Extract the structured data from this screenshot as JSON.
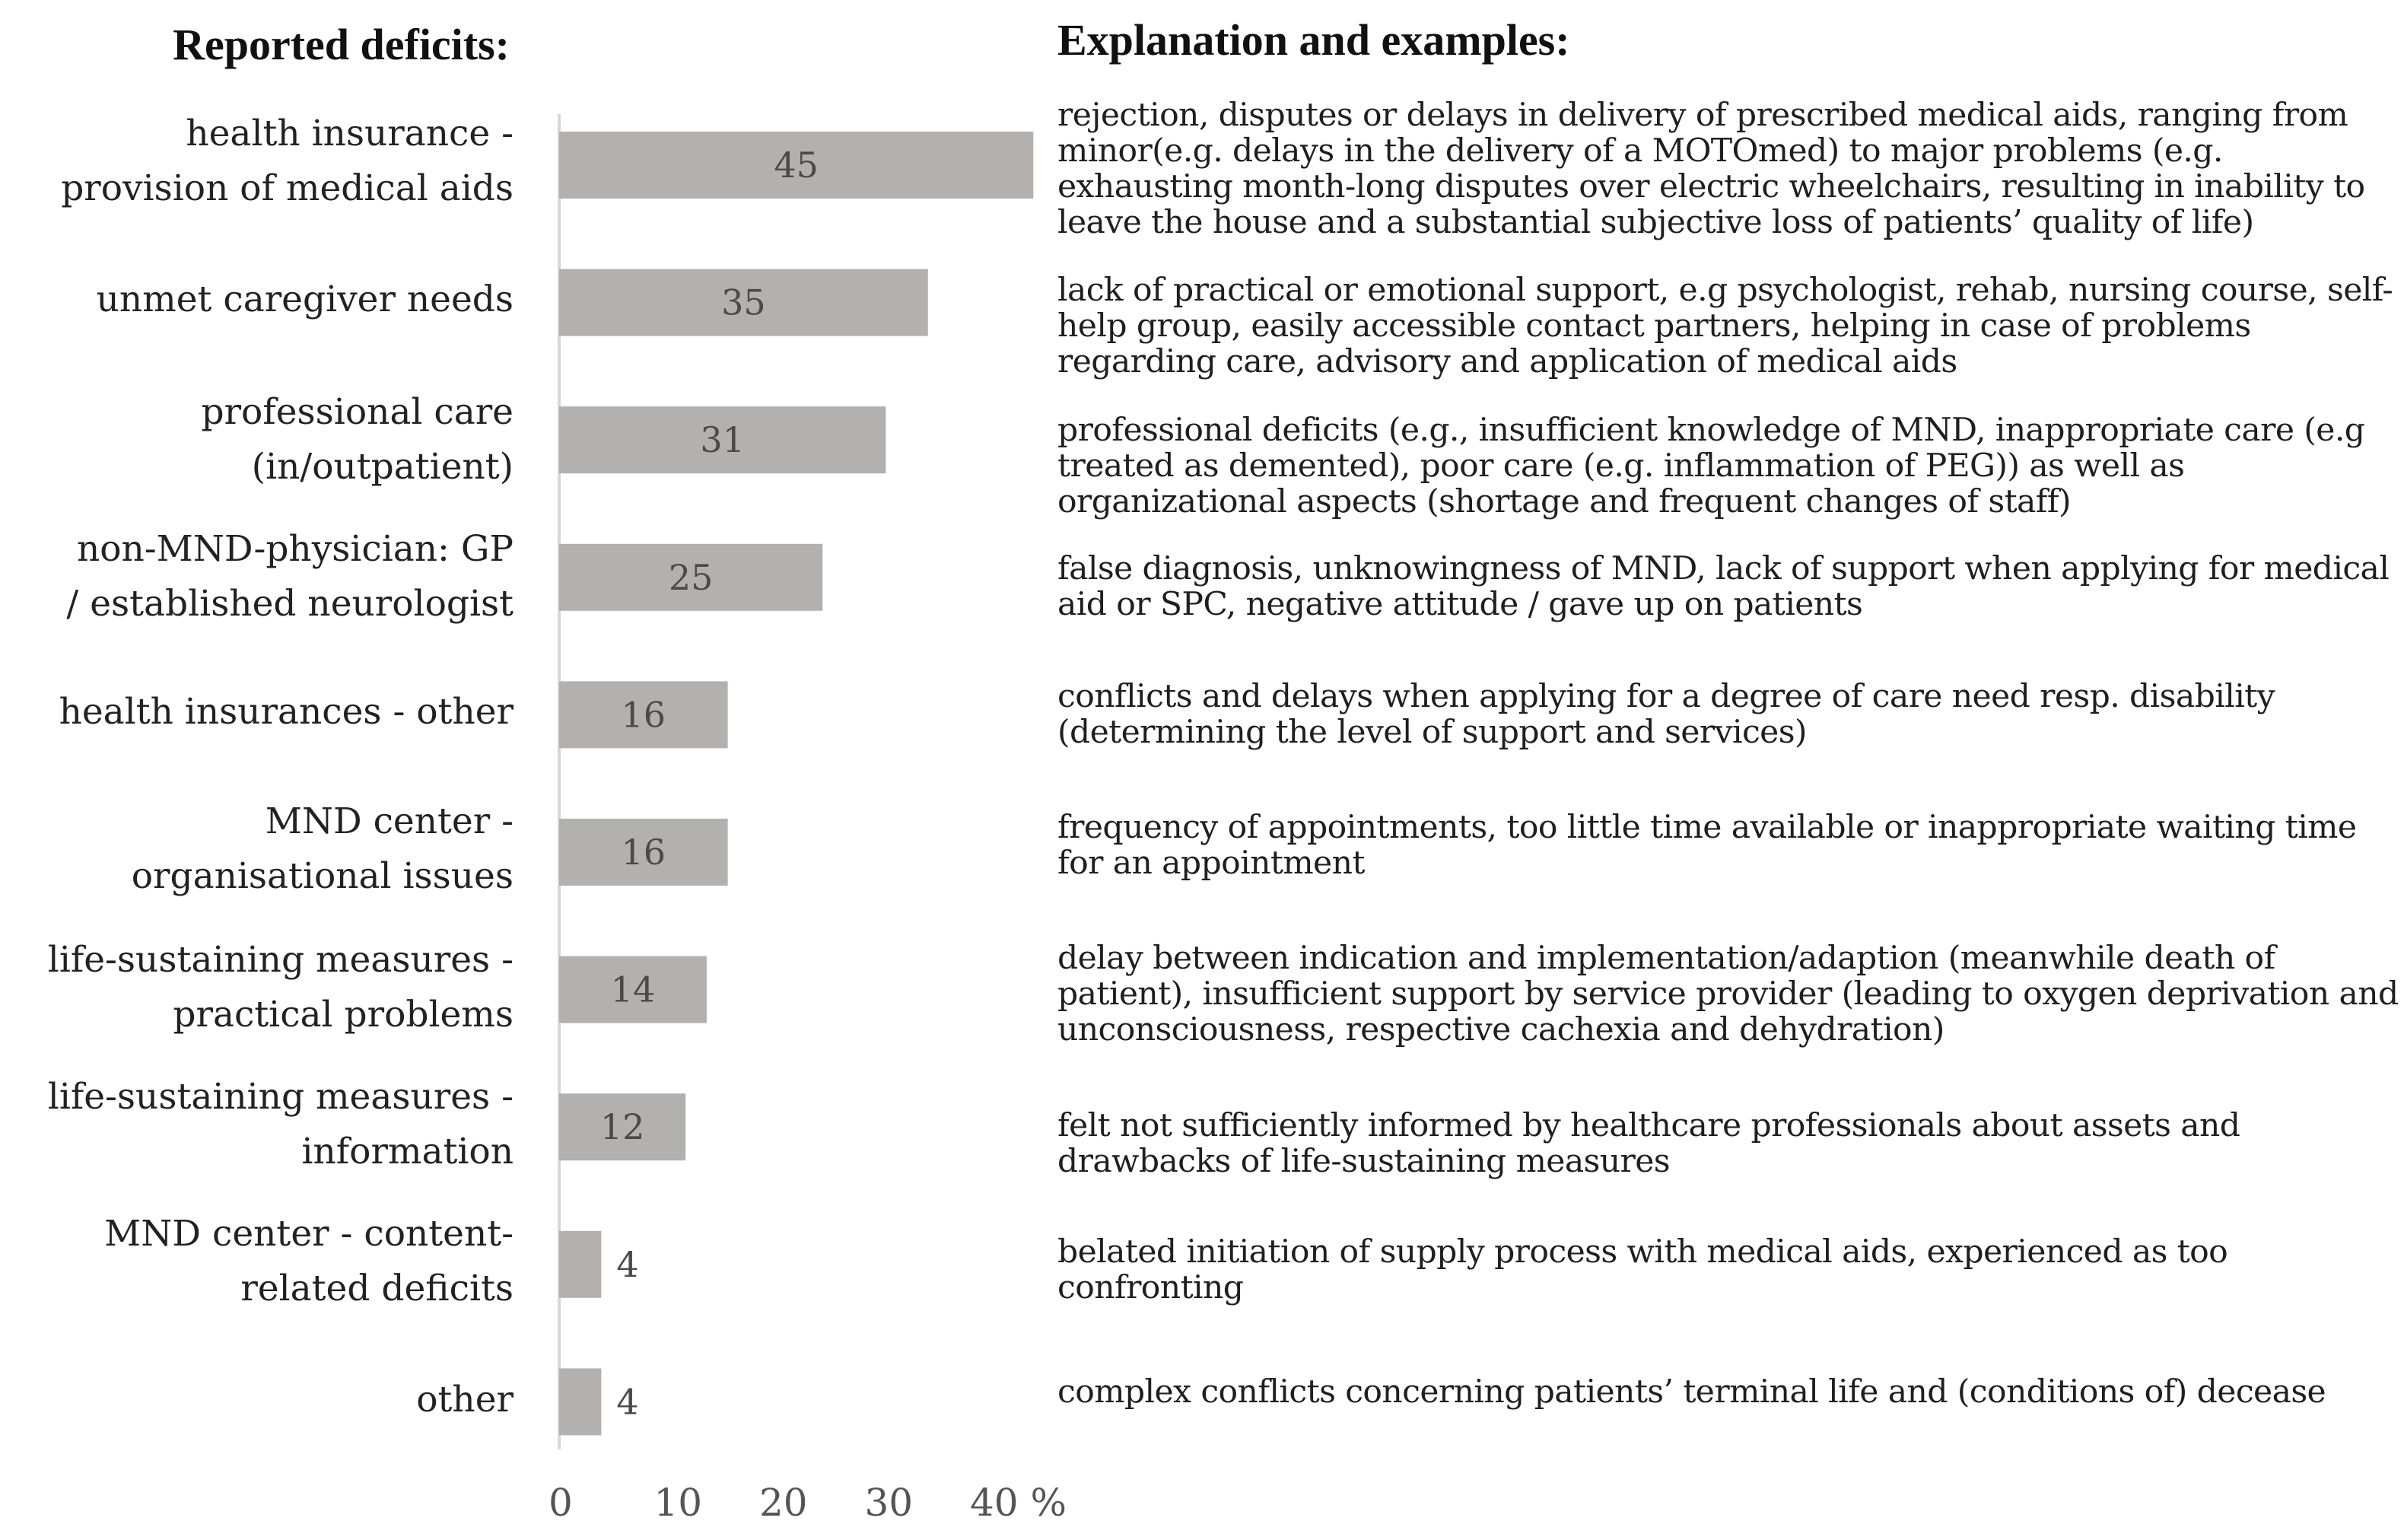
{
  "headings": {
    "left": "Reported deficits:",
    "right": "Explanation and examples:"
  },
  "chart_data": {
    "type": "bar",
    "orientation": "horizontal",
    "categories": [
      "health insurance -\nprovision of medical aids",
      "unmet caregiver needs",
      "professional care\n(in/outpatient)",
      "non-MND-physician: GP\n/ established neurologist",
      "health insurances  - other",
      "MND center -\norganisational issues",
      "life-sustaining measures -\npractical problems",
      "life-sustaining measures -\ninformation",
      "MND center - content-\nrelated deficits",
      "other"
    ],
    "values": [
      45,
      35,
      31,
      25,
      16,
      16,
      14,
      12,
      4,
      4
    ],
    "xlim": [
      0,
      45
    ],
    "xticks": [
      "0",
      "10",
      "20",
      "30",
      "40 %"
    ],
    "bar_color": "#b3b0b0"
  },
  "explanations": [
    "rejection, disputes or delays in delivery of prescribed medical aids, ranging from minor(e.g. delays in the delivery of a MOTOmed) to major problems (e.g. exhausting month-long disputes over electric wheelchairs, resulting in inability to leave the house and a substantial subjective loss of patients’ quality of life)",
    "lack of practical or emotional support, e.g psychologist, rehab, nursing course, self-help group, easily accessible contact partners, helping in case of problems regarding care, advisory and application of medical aids",
    "professional deficits (e.g., insufficient knowledge of MND, inappropriate care (e.g treated as demented), poor care (e.g. inflammation of PEG)) as well as organizational aspects (shortage and frequent changes of staff)",
    "false diagnosis, unknowingness of MND, lack of support when applying for medical aid or SPC, negative attitude / gave up on patients",
    "conflicts and delays when applying for a degree of care need resp. disability (determining the level of support and services)",
    "frequency of appointments, too little time available or inappropriate waiting time for an appointment",
    "delay between indication and implementation/adaption (meanwhile death of patient), insufficient support by service provider (leading to oxygen deprivation and unconsciousness, respective cachexia and dehydration)",
    "felt not sufficiently informed by healthcare professionals about assets and drawbacks of life-sustaining measures",
    "belated initiation of supply process with medical aids, experienced as too confronting",
    "complex conflicts concerning patients’ terminal life and (conditions of) decease"
  ]
}
